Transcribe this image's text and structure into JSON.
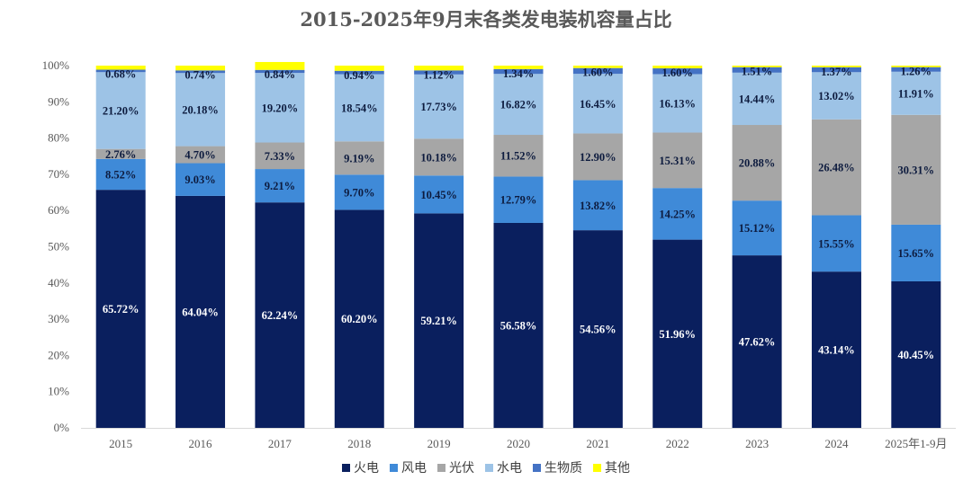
{
  "chart_data": {
    "type": "bar",
    "stacked": true,
    "title": "2015-2025年9月末各类发电装机容量占比",
    "categories": [
      "2015",
      "2016",
      "2017",
      "2018",
      "2019",
      "2020",
      "2021",
      "2022",
      "2023",
      "2024",
      "2025年1-9月"
    ],
    "ylim": [
      0,
      100
    ],
    "y_ticks": [
      "0%",
      "10%",
      "20%",
      "30%",
      "40%",
      "50%",
      "60%",
      "70%",
      "80%",
      "90%",
      "100%"
    ],
    "grid": false,
    "legend_position": "bottom",
    "series": [
      {
        "name": "火电",
        "color": "#0a1f5e",
        "label_color": "#ffffff",
        "values": [
          65.72,
          64.04,
          62.24,
          60.2,
          59.21,
          56.58,
          54.56,
          51.96,
          47.62,
          43.14,
          40.45
        ],
        "labels": [
          "65.72%",
          "64.04%",
          "62.24%",
          "60.20%",
          "59.21%",
          "56.58%",
          "54.56%",
          "51.96%",
          "47.62%",
          "43.14%",
          "40.45%"
        ]
      },
      {
        "name": "风电",
        "color": "#3f8ad8",
        "label_color": "#0d1b3e",
        "values": [
          8.52,
          9.03,
          9.21,
          9.7,
          10.45,
          12.79,
          13.82,
          14.25,
          15.12,
          15.55,
          15.65
        ],
        "labels": [
          "8.52%",
          "9.03%",
          "9.21%",
          "9.70%",
          "10.45%",
          "12.79%",
          "13.82%",
          "14.25%",
          "15.12%",
          "15.55%",
          "15.65%"
        ]
      },
      {
        "name": "光伏",
        "color": "#a6a6a6",
        "label_color": "#0d1b3e",
        "values": [
          2.76,
          4.7,
          7.33,
          9.19,
          10.18,
          11.52,
          12.9,
          15.31,
          20.88,
          26.48,
          30.31
        ],
        "labels": [
          "2.76%",
          "4.70%",
          "7.33%",
          "9.19%",
          "10.18%",
          "11.52%",
          "12.90%",
          "15.31%",
          "20.88%",
          "26.48%",
          "30.31%"
        ]
      },
      {
        "name": "水电",
        "color": "#9dc3e6",
        "label_color": "#0d1b3e",
        "values": [
          21.2,
          20.18,
          19.2,
          18.54,
          17.73,
          16.82,
          16.45,
          16.13,
          14.44,
          13.02,
          11.91
        ],
        "labels": [
          "21.20%",
          "20.18%",
          "19.20%",
          "18.54%",
          "17.73%",
          "16.82%",
          "16.45%",
          "16.13%",
          "14.44%",
          "13.02%",
          "11.91%"
        ]
      },
      {
        "name": "生物质",
        "color": "#4472c4",
        "label_color": "#0d1b3e",
        "values": [
          0.68,
          0.74,
          0.84,
          0.94,
          1.12,
          1.34,
          1.6,
          1.6,
          1.51,
          1.37,
          1.26
        ],
        "labels": [
          "0.68%",
          "0.74%",
          "0.84%",
          "0.94%",
          "1.12%",
          "1.34%",
          "1.60%",
          "1.60%",
          "1.51%",
          "1.37%",
          "1.26%"
        ]
      },
      {
        "name": "其他",
        "color": "#ffff00",
        "label_color": "#0d1b3e",
        "values": [
          1.12,
          1.31,
          2.18,
          1.43,
          1.31,
          0.95,
          0.67,
          0.75,
          0.43,
          0.44,
          0.42
        ],
        "labels": []
      }
    ]
  }
}
